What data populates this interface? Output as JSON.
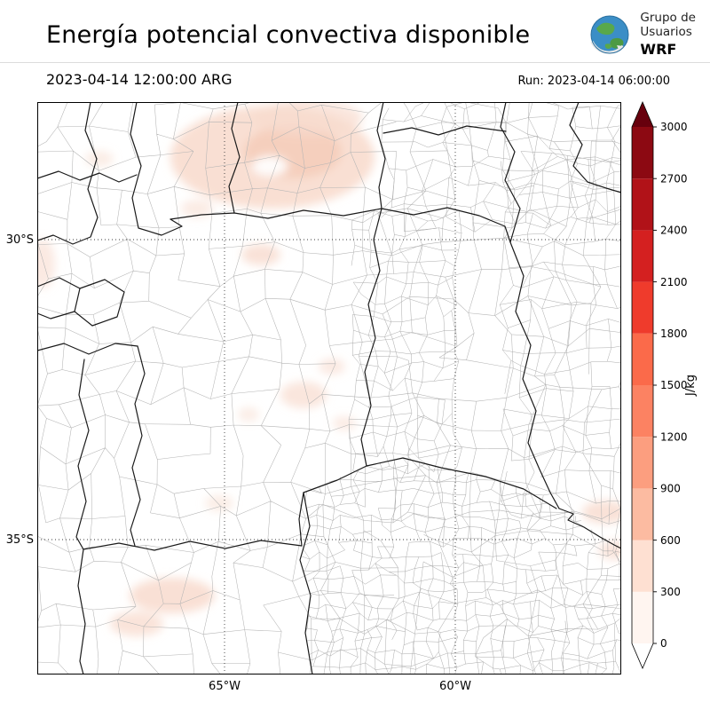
{
  "header": {
    "title": "Energía potencial convectiva disponible",
    "logo": {
      "line1": "Grupo de",
      "line2": "Usuarios",
      "line3": "WRF"
    },
    "valid_time": "2023-04-14 12:00:00 ARG",
    "run": "Run: 2023-04-14 06:00:00"
  },
  "chart_data": {
    "type": "heatmap",
    "title": "Energía potencial convectiva disponible",
    "region": "central Argentina provinces with department boundaries",
    "x_ticks": [
      "65°W",
      "60°W"
    ],
    "y_ticks": [
      "30°S",
      "35°S"
    ],
    "grid": "dotted graticule at labeled meridians and parallels",
    "field": {
      "description": "scattered very light CAPE shading over the map",
      "visible_value_range": [
        0,
        300
      ]
    },
    "colorbar": {
      "label": "J/kg",
      "orientation": "vertical-right",
      "extend": "both",
      "levels": [
        0,
        300,
        600,
        900,
        1200,
        1500,
        1800,
        2100,
        2400,
        2700,
        3000
      ],
      "segment_colors_bottom_to_top": [
        "#fff5f0",
        "#fee0d2",
        "#fcbba1",
        "#fc9e7f",
        "#fc8262",
        "#fb6a4a",
        "#ef3b2c",
        "#d42020",
        "#b11218",
        "#8c0912"
      ],
      "over_color": "#67000d",
      "under_color": "#ffffff"
    }
  }
}
